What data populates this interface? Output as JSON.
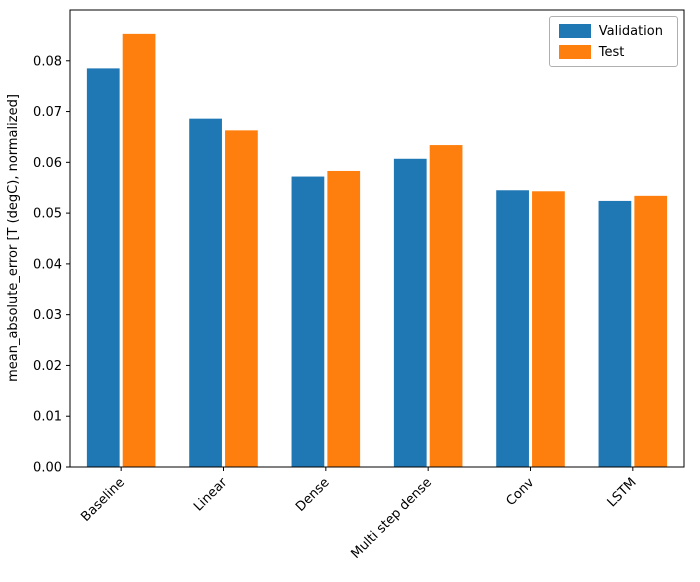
{
  "chart_data": {
    "type": "bar",
    "title": "",
    "xlabel": "",
    "ylabel": "mean_absolute_error [T (degC), normalized]",
    "categories": [
      "Baseline",
      "Linear",
      "Dense",
      "Multi step dense",
      "Conv",
      "LSTM"
    ],
    "series": [
      {
        "name": "Validation",
        "color": "#1f77b4",
        "values": [
          0.0785,
          0.0686,
          0.0572,
          0.0607,
          0.0545,
          0.0524
        ]
      },
      {
        "name": "Test",
        "color": "#ff7f0e",
        "values": [
          0.0853,
          0.0663,
          0.0583,
          0.0634,
          0.0543,
          0.0534
        ]
      }
    ],
    "ylim": [
      0,
      0.09
    ],
    "yticks": [
      0.0,
      0.01,
      0.02,
      0.03,
      0.04,
      0.05,
      0.06,
      0.07,
      0.08
    ],
    "ytick_labels": [
      "0.00",
      "0.01",
      "0.02",
      "0.03",
      "0.04",
      "0.05",
      "0.06",
      "0.07",
      "0.08"
    ],
    "legend_position": "upper right",
    "grid": false,
    "bar_group_offset": 0.175,
    "bar_width_fraction": 0.32
  }
}
